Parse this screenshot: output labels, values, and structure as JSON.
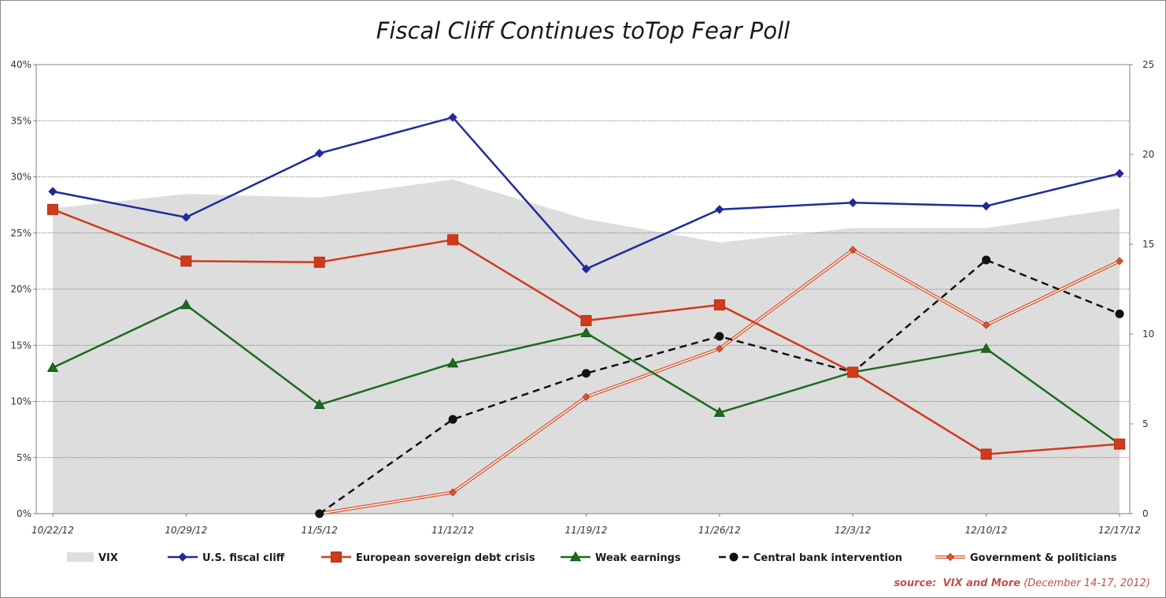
{
  "chart_data": {
    "type": "line",
    "title": "Fiscal Cliff Continues toTop Fear Poll",
    "categories": [
      "10/22/12",
      "10/29/12",
      "11/5/12",
      "11/12/12",
      "11/19/12",
      "11/26/12",
      "12/3/12",
      "12/10/12",
      "12/17/12"
    ],
    "y_left": {
      "ylim": [
        0,
        40
      ],
      "ticks": [
        0,
        5,
        10,
        15,
        20,
        25,
        30,
        35,
        40
      ],
      "tick_labels": [
        "0%",
        "5%",
        "10%",
        "15%",
        "20%",
        "25%",
        "30%",
        "35%",
        "40%"
      ]
    },
    "y_right": {
      "ylim": [
        0,
        25
      ],
      "ticks": [
        0,
        5,
        10,
        15,
        20,
        25
      ],
      "tick_labels": [
        "0",
        "5",
        "10",
        "15",
        "20",
        "25"
      ]
    },
    "grid": true,
    "legend_position": "bottom",
    "series": [
      {
        "name": "VIX",
        "kind": "area",
        "axis": "right",
        "color": "#dddddd",
        "values": [
          17.0,
          17.8,
          17.6,
          18.6,
          16.4,
          15.1,
          15.9,
          15.9,
          17.0
        ]
      },
      {
        "name": "U.S. fiscal cliff",
        "kind": "line",
        "axis": "left",
        "color": "#1f2a9e",
        "marker": "diamond",
        "values": [
          28.7,
          26.4,
          32.1,
          35.3,
          21.8,
          27.1,
          27.7,
          27.4,
          30.3
        ]
      },
      {
        "name": "European sovereign debt crisis",
        "kind": "line",
        "axis": "left",
        "color": "#cf3a1c",
        "marker": "square",
        "values": [
          27.1,
          22.5,
          22.4,
          24.4,
          17.2,
          18.6,
          12.6,
          5.3,
          6.2
        ]
      },
      {
        "name": "Weak earnings",
        "kind": "line",
        "axis": "left",
        "color": "#1d6b1d",
        "marker": "triangle",
        "values": [
          13.0,
          18.6,
          9.7,
          13.4,
          16.1,
          9.0,
          12.6,
          14.7,
          6.2
        ]
      },
      {
        "name": "Central bank intervention",
        "kind": "dashed",
        "axis": "left",
        "color": "#111111",
        "marker": "circle",
        "values": [
          null,
          null,
          0.0,
          8.4,
          12.5,
          15.8,
          12.6,
          22.6,
          17.8
        ]
      },
      {
        "name": "Government & politicians",
        "kind": "double",
        "axis": "left",
        "color": "#d9542b",
        "marker": "diamond-small",
        "values": [
          null,
          null,
          0.0,
          1.9,
          10.4,
          14.7,
          23.5,
          16.8,
          22.5
        ]
      }
    ]
  },
  "source": {
    "label": "source:",
    "name": "VIX and More",
    "detail": "(December 14-17, 2012)"
  }
}
